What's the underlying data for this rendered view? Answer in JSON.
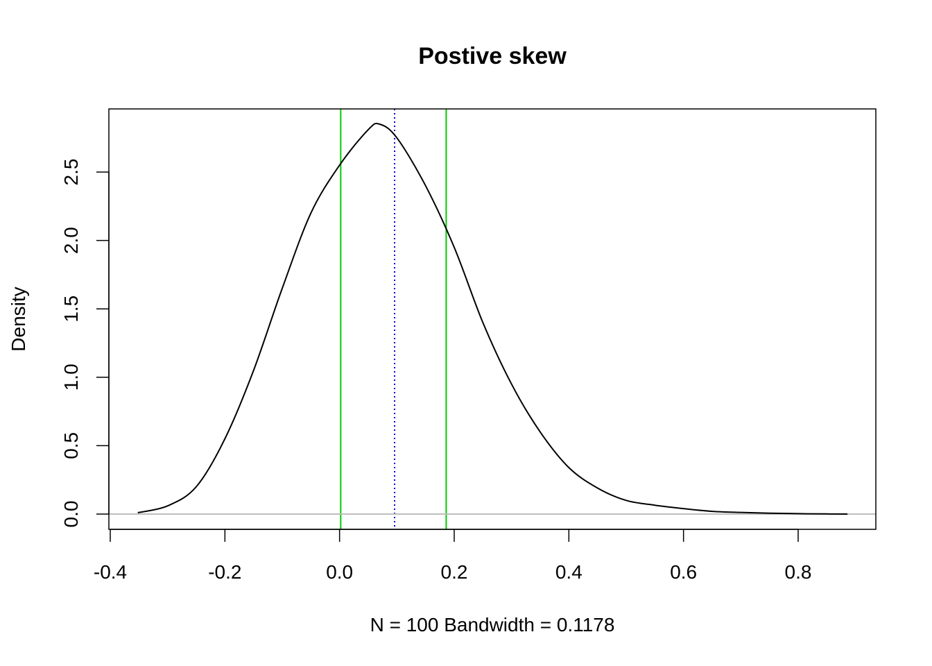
{
  "chart_data": {
    "type": "line",
    "title": "Postive skew",
    "xlabel": "N = 100   Bandwidth = 0.1178",
    "ylabel": "Density",
    "xlim": [
      -0.4,
      0.92
    ],
    "ylim": [
      -0.1,
      2.95
    ],
    "x_ticks": [
      -0.4,
      -0.2,
      0.0,
      0.2,
      0.4,
      0.6,
      0.8
    ],
    "x_tick_labels": [
      "-0.4",
      "-0.2",
      "0.0",
      "0.2",
      "0.4",
      "0.6",
      "0.8"
    ],
    "y_ticks": [
      0.0,
      0.5,
      1.0,
      1.5,
      2.0,
      2.5
    ],
    "y_tick_labels": [
      "0.0",
      "0.5",
      "1.0",
      "1.5",
      "2.0",
      "2.5"
    ],
    "grid": false,
    "series": [
      {
        "type": "line",
        "color": "#000000",
        "x": [
          -0.352,
          -0.3,
          -0.25,
          -0.2,
          -0.15,
          -0.1,
          -0.05,
          0.0,
          0.05,
          0.07,
          0.1,
          0.15,
          0.2,
          0.25,
          0.3,
          0.35,
          0.4,
          0.45,
          0.5,
          0.55,
          0.6,
          0.65,
          0.7,
          0.75,
          0.8,
          0.85,
          0.886
        ],
        "y": [
          0.01,
          0.06,
          0.2,
          0.55,
          1.05,
          1.65,
          2.2,
          2.55,
          2.81,
          2.85,
          2.75,
          2.4,
          1.95,
          1.4,
          0.95,
          0.6,
          0.34,
          0.19,
          0.1,
          0.065,
          0.04,
          0.02,
          0.012,
          0.006,
          0.003,
          0.001,
          0.0
        ]
      }
    ],
    "reference_lines": [
      {
        "orientation": "vertical",
        "x": 0.002,
        "color": "#00cc00",
        "style": "solid"
      },
      {
        "orientation": "vertical",
        "x": 0.186,
        "color": "#00cc00",
        "style": "solid"
      },
      {
        "orientation": "vertical",
        "x": 0.096,
        "color": "#0000cc",
        "style": "dotted"
      },
      {
        "orientation": "horizontal",
        "y": 0.0,
        "color": "#bebebe",
        "style": "solid"
      }
    ]
  }
}
